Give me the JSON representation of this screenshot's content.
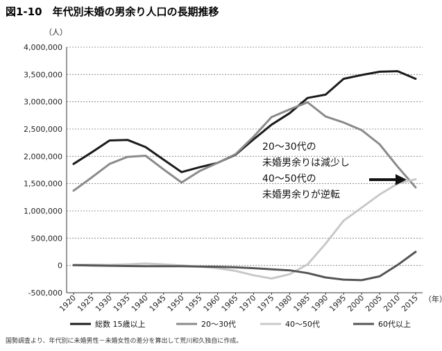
{
  "header": {
    "title": "図1-10　年代別未婚の男余り人口の長期推移"
  },
  "chart_data": {
    "type": "line",
    "title": "図1-10　年代別未婚の男余り人口の長期推移",
    "ylabel": "（人）",
    "xlabel": "（年）",
    "ylim": [
      -500000,
      4000000
    ],
    "yticks": [
      4000000,
      3500000,
      3000000,
      2500000,
      2000000,
      1500000,
      1000000,
      500000,
      0,
      -500000
    ],
    "ytick_labels": [
      "4,000,000",
      "3,500,000",
      "3,000,000",
      "2,500,000",
      "2,000,000",
      "1,500,000",
      "1,000,000",
      "500,000",
      "0",
      "-500,000"
    ],
    "x": [
      1920,
      1925,
      1930,
      1935,
      1940,
      1945,
      1950,
      1955,
      1960,
      1965,
      1970,
      1975,
      1980,
      1985,
      1990,
      1995,
      2000,
      2005,
      2010,
      2015
    ],
    "x_labels": [
      "1920",
      "1925",
      "1930",
      "1935",
      "1940",
      "1945",
      "1950",
      "1955",
      "1960",
      "1965",
      "1970",
      "1975",
      "1980",
      "1985",
      "1990",
      "1995",
      "2000",
      "2005",
      "2010",
      "2015"
    ],
    "grid": "horizontal dashed",
    "legend_position": "bottom",
    "series": [
      {
        "name": "総数 15歳以上",
        "color": "#1a1a1a",
        "values": [
          1860000,
          2070000,
          2290000,
          2300000,
          2170000,
          1940000,
          1710000,
          1800000,
          1880000,
          2030000,
          2310000,
          2580000,
          2790000,
          3070000,
          3130000,
          3420000,
          3490000,
          3550000,
          3560000,
          3420000
        ]
      },
      {
        "name": "20～30代",
        "color": "#8a8a8a",
        "values": [
          1370000,
          1610000,
          1860000,
          1990000,
          2010000,
          1760000,
          1520000,
          1730000,
          1880000,
          2040000,
          2360000,
          2720000,
          2860000,
          2990000,
          2730000,
          2620000,
          2480000,
          2220000,
          1810000,
          1430000
        ]
      },
      {
        "name": "40～50代",
        "color": "#c8c8c8",
        "values": [
          10000,
          15000,
          10000,
          20000,
          35000,
          20000,
          0,
          -20000,
          -50000,
          -100000,
          -180000,
          -240000,
          -160000,
          20000,
          400000,
          820000,
          1060000,
          1300000,
          1500000,
          1580000
        ]
      },
      {
        "name": "60代以上",
        "color": "#555555",
        "values": [
          5000,
          0,
          -5000,
          -10000,
          -15000,
          -15000,
          -15000,
          -20000,
          -25000,
          -35000,
          -50000,
          -70000,
          -90000,
          -140000,
          -220000,
          -260000,
          -270000,
          -200000,
          10000,
          250000
        ]
      }
    ],
    "annotations": [
      {
        "text_lines": [
          "20～30代の",
          "未婚男余りは減少し",
          "40～50代の",
          "未婚男余りが逆転"
        ],
        "arrow": "right"
      }
    ],
    "note": "国勢調査より、年代別に未婚男性－未婚女性の差分を算出して荒川和久独自に作成。"
  }
}
